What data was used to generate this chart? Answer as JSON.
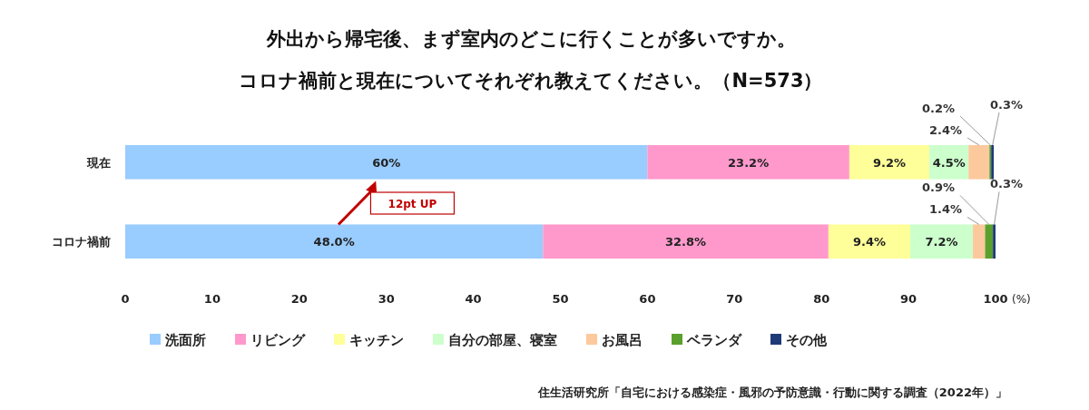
{
  "chart_data": {
    "type": "bar",
    "orientation": "horizontal",
    "stacked": true,
    "title": "外出から帰宅後、まず室内のどこに行くことが多いですか。",
    "subtitle": "コロナ禍前と現在についてそれぞれ教えてください。（N=573）",
    "categories": [
      "現在",
      "コロナ禍前"
    ],
    "xlabel": "(%)",
    "xlim": [
      0,
      100
    ],
    "xticks": [
      0,
      10,
      20,
      30,
      40,
      50,
      60,
      70,
      80,
      90,
      100
    ],
    "series": [
      {
        "name": "洗面所",
        "color": "#99ccff",
        "values": [
          60,
          48.0
        ],
        "value_labels": [
          "60%",
          "48.0%"
        ]
      },
      {
        "name": "リビング",
        "color": "#ff99cc",
        "values": [
          23.2,
          32.8
        ],
        "value_labels": [
          "23.2%",
          "32.8%"
        ]
      },
      {
        "name": "キッチン",
        "color": "#ffff99",
        "values": [
          9.2,
          9.4
        ],
        "value_labels": [
          "9.2%",
          "9.4%"
        ]
      },
      {
        "name": "自分の部屋、寝室",
        "color": "#ccffcc",
        "values": [
          4.5,
          7.2
        ],
        "value_labels": [
          "4.5%",
          "7.2%"
        ]
      },
      {
        "name": "お風呂",
        "color": "#fcc99c",
        "values": [
          2.4,
          1.4
        ],
        "value_labels": [
          "2.4%",
          "1.4%"
        ]
      },
      {
        "name": "ベランダ",
        "color": "#5aa02c",
        "values": [
          0.2,
          0.9
        ],
        "value_labels": [
          "0.2%",
          "0.9%"
        ]
      },
      {
        "name": "その他",
        "color": "#1f3a78",
        "values": [
          0.3,
          0.3
        ],
        "value_labels": [
          "0.3%",
          "0.3%"
        ]
      }
    ],
    "annotations": [
      "12pt UP",
      "住生活研究所「自宅における感染症・風邪の予防意識・行動に関する調査（2022年）」"
    ],
    "legend": "bottom",
    "grid": false
  }
}
